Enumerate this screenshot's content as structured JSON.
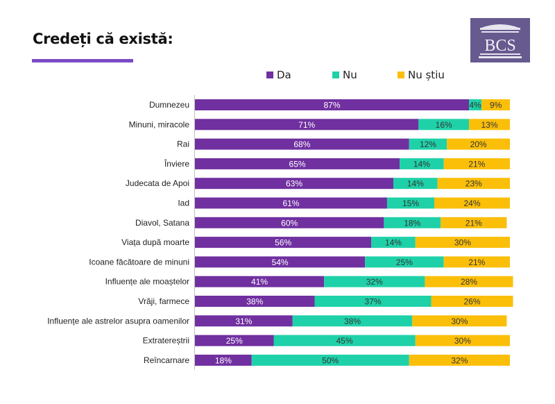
{
  "header": {
    "title": "Credeți că există:",
    "logo_text": "BCS"
  },
  "colors": {
    "accent": "#7a4cc4",
    "logo_bg": "#665a8f",
    "da": "#7030a0",
    "nu": "#1fd1a8",
    "nu_stiu": "#fbbf0a",
    "label_light": "#ffffff",
    "label_dark": "#333333"
  },
  "chart_data": {
    "type": "bar",
    "orientation": "horizontal",
    "stacked": true,
    "title": "Credeți că există:",
    "xlabel": "",
    "ylabel": "",
    "xlim": [
      0,
      100
    ],
    "grid": false,
    "legend_position": "top",
    "categories": [
      "Dumnezeu",
      "Minuni, miracole",
      "Rai",
      "Înviere",
      "Judecata de Apoi",
      "Iad",
      "Diavol, Satana",
      "Viața după moarte",
      "Icoane făcătoare de minuni",
      "Influențe ale moaștelor",
      "Vrăji, farmece",
      "Influențe ale astrelor asupra oamenilor",
      "Extratereștrii",
      "Reîncarnare"
    ],
    "series": [
      {
        "name": "Da",
        "color": "#7030a0",
        "values": [
          87,
          71,
          68,
          65,
          63,
          61,
          60,
          56,
          54,
          41,
          38,
          31,
          25,
          18
        ]
      },
      {
        "name": "Nu",
        "color": "#1fd1a8",
        "values": [
          4,
          16,
          12,
          14,
          14,
          15,
          18,
          14,
          25,
          32,
          37,
          38,
          45,
          50
        ]
      },
      {
        "name": "Nu știu",
        "color": "#fbbf0a",
        "values": [
          9,
          13,
          20,
          21,
          23,
          24,
          21,
          30,
          21,
          28,
          26,
          30,
          30,
          32
        ]
      }
    ],
    "value_suffix": "%"
  }
}
